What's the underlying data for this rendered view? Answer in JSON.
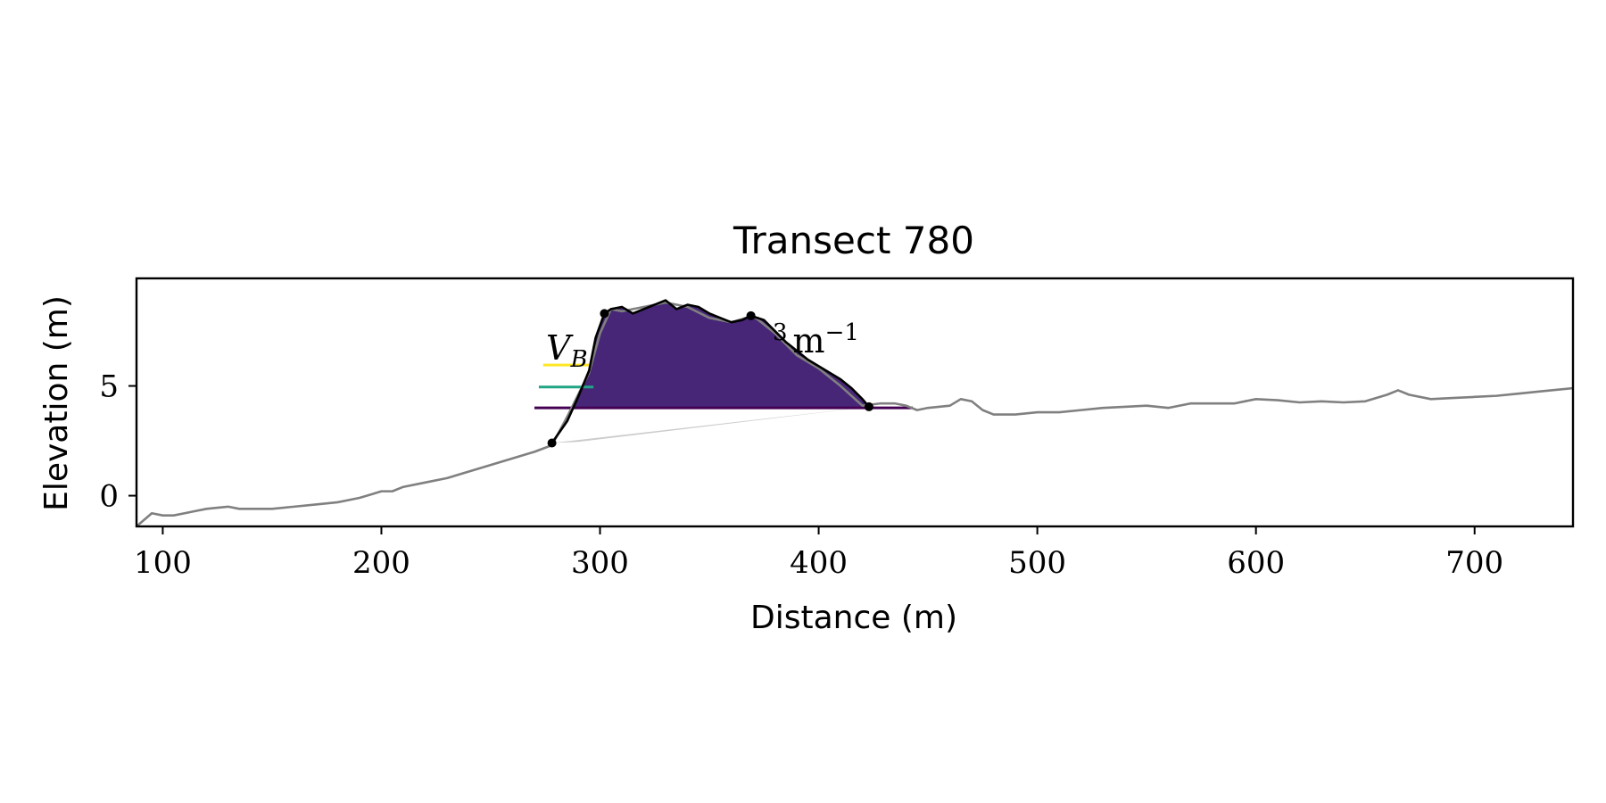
{
  "chart_data": {
    "type": "line",
    "title": "Transect 780",
    "xlabel": "Distance (m)",
    "ylabel": "Elevation (m)",
    "xlim": [
      88,
      745
    ],
    "ylim": [
      -1.4,
      9.9
    ],
    "xticks": [
      100,
      200,
      300,
      400,
      500,
      600,
      700
    ],
    "yticks": [
      0,
      5
    ],
    "grid": false,
    "annotation": {
      "math_base": "V",
      "math_subscript": "B",
      "math_tail_superscript": "3",
      "math_tail": "m",
      "math_tail_exponent": "−1"
    },
    "colors": {
      "profile": "#808080",
      "dune": "#000000",
      "volume_yellow": "#fde725",
      "volume_teal": "#21a585",
      "volume_purple": "#472677",
      "baseline": "#440154",
      "below_fill": "#cccccc"
    },
    "profile": {
      "x": [
        88,
        95,
        100,
        105,
        110,
        115,
        120,
        130,
        135,
        140,
        150,
        160,
        170,
        180,
        190,
        195,
        200,
        205,
        210,
        220,
        230,
        240,
        250,
        260,
        270,
        278,
        285,
        290,
        295,
        300,
        305,
        310,
        320,
        330,
        340,
        350,
        360,
        370,
        380,
        390,
        400,
        410,
        420,
        428,
        435,
        440,
        445,
        450,
        460,
        465,
        470,
        475,
        480,
        490,
        500,
        510,
        520,
        530,
        540,
        550,
        560,
        570,
        580,
        590,
        600,
        610,
        620,
        630,
        640,
        650,
        660,
        665,
        670,
        680,
        690,
        700,
        710,
        720,
        730,
        745
      ],
      "y": [
        -1.4,
        -0.8,
        -0.9,
        -0.9,
        -0.8,
        -0.7,
        -0.6,
        -0.5,
        -0.6,
        -0.6,
        -0.6,
        -0.5,
        -0.4,
        -0.3,
        -0.1,
        0.05,
        0.2,
        0.2,
        0.4,
        0.6,
        0.8,
        1.1,
        1.4,
        1.7,
        2.0,
        2.3,
        3.6,
        4.6,
        5.6,
        7.4,
        8.5,
        8.4,
        8.6,
        8.8,
        8.6,
        8.1,
        7.9,
        8.2,
        7.4,
        6.4,
        5.8,
        5.0,
        4.1,
        4.2,
        4.2,
        4.1,
        3.9,
        4.0,
        4.1,
        4.4,
        4.3,
        3.9,
        3.7,
        3.7,
        3.8,
        3.8,
        3.9,
        4.0,
        4.05,
        4.1,
        4.0,
        4.2,
        4.2,
        4.2,
        4.4,
        4.35,
        4.25,
        4.3,
        4.25,
        4.3,
        4.6,
        4.8,
        4.6,
        4.4,
        4.45,
        4.5,
        4.55,
        4.65,
        4.75,
        4.9
      ]
    },
    "dune_crest": {
      "x": [
        278,
        285,
        290,
        295,
        298,
        302,
        305,
        310,
        315,
        320,
        330,
        335,
        340,
        345,
        350,
        355,
        360,
        365,
        369,
        375,
        380,
        385,
        390,
        395,
        400,
        405,
        410,
        415,
        420,
        423
      ],
      "y": [
        2.4,
        3.4,
        4.5,
        5.7,
        7.2,
        8.3,
        8.5,
        8.6,
        8.3,
        8.5,
        8.9,
        8.5,
        8.7,
        8.6,
        8.3,
        8.1,
        7.9,
        8.0,
        8.2,
        8.0,
        7.5,
        7.0,
        6.6,
        6.2,
        5.9,
        5.6,
        5.3,
        4.9,
        4.4,
        4.05
      ]
    },
    "key_points": {
      "x": [
        278,
        302,
        369,
        423
      ],
      "y": [
        2.4,
        8.3,
        8.2,
        4.05
      ]
    },
    "volume_layers": [
      {
        "name": "",
        "color_key": "volume_yellow",
        "lower": 5.95
      },
      {
        "name": "",
        "color_key": "volume_teal",
        "lower": 4.95
      },
      {
        "name": "",
        "color_key": "volume_purple",
        "lower": 4.0
      }
    ],
    "layer_markers": [
      {
        "x0": 274,
        "x1": 295,
        "y": 5.95,
        "color_key": "volume_yellow"
      },
      {
        "x0": 272,
        "x1": 297,
        "y": 4.95,
        "color_key": "volume_teal"
      },
      {
        "x0": 270,
        "x1": 443,
        "y": 4.0,
        "color_key": "baseline"
      }
    ],
    "below_region": {
      "x": [
        278,
        290,
        423,
        278
      ],
      "y": [
        2.4,
        2.45,
        4.05,
        2.4
      ]
    }
  }
}
